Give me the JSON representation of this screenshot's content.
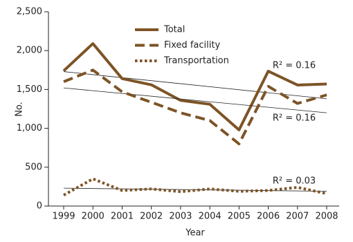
{
  "chart_data": {
    "type": "line",
    "x_label": "Year",
    "y_label": "No.",
    "categories": [
      "1999",
      "2000",
      "2001",
      "2002",
      "2003",
      "2004",
      "2005",
      "2006",
      "2007",
      "2008"
    ],
    "ylim": [
      0,
      2500
    ],
    "yticks": [
      0,
      500,
      {
        "value": 1000,
        "label": "1,000"
      },
      {
        "value": 1500,
        "label": "1,500"
      },
      {
        "value": 2000,
        "label": "2,000"
      },
      {
        "value": 2500,
        "label": "2,500"
      }
    ],
    "series": [
      {
        "name": "Total",
        "color": "#7d5426",
        "dash": "solid",
        "values": [
          1740,
          2090,
          1640,
          1560,
          1360,
          1310,
          980,
          1735,
          1557,
          1570
        ],
        "trend": [
          1730,
          1380
        ],
        "r2_label": "R² = 0.16"
      },
      {
        "name": "Fixed facility",
        "color": "#7d5426",
        "dash": "dashed",
        "values": [
          1600,
          1750,
          1470,
          1335,
          1200,
          1100,
          800,
          1540,
          1320,
          1430
        ],
        "trend": [
          1520,
          1200
        ],
        "r2_label": "R² = 0.16"
      },
      {
        "name": "Transportation",
        "color": "#7d5426",
        "dash": "dotted",
        "values": [
          140,
          350,
          200,
          220,
          185,
          220,
          190,
          200,
          240,
          160
        ],
        "trend": [
          230,
          190
        ],
        "r2_label": "R² = 0.03"
      }
    ]
  }
}
